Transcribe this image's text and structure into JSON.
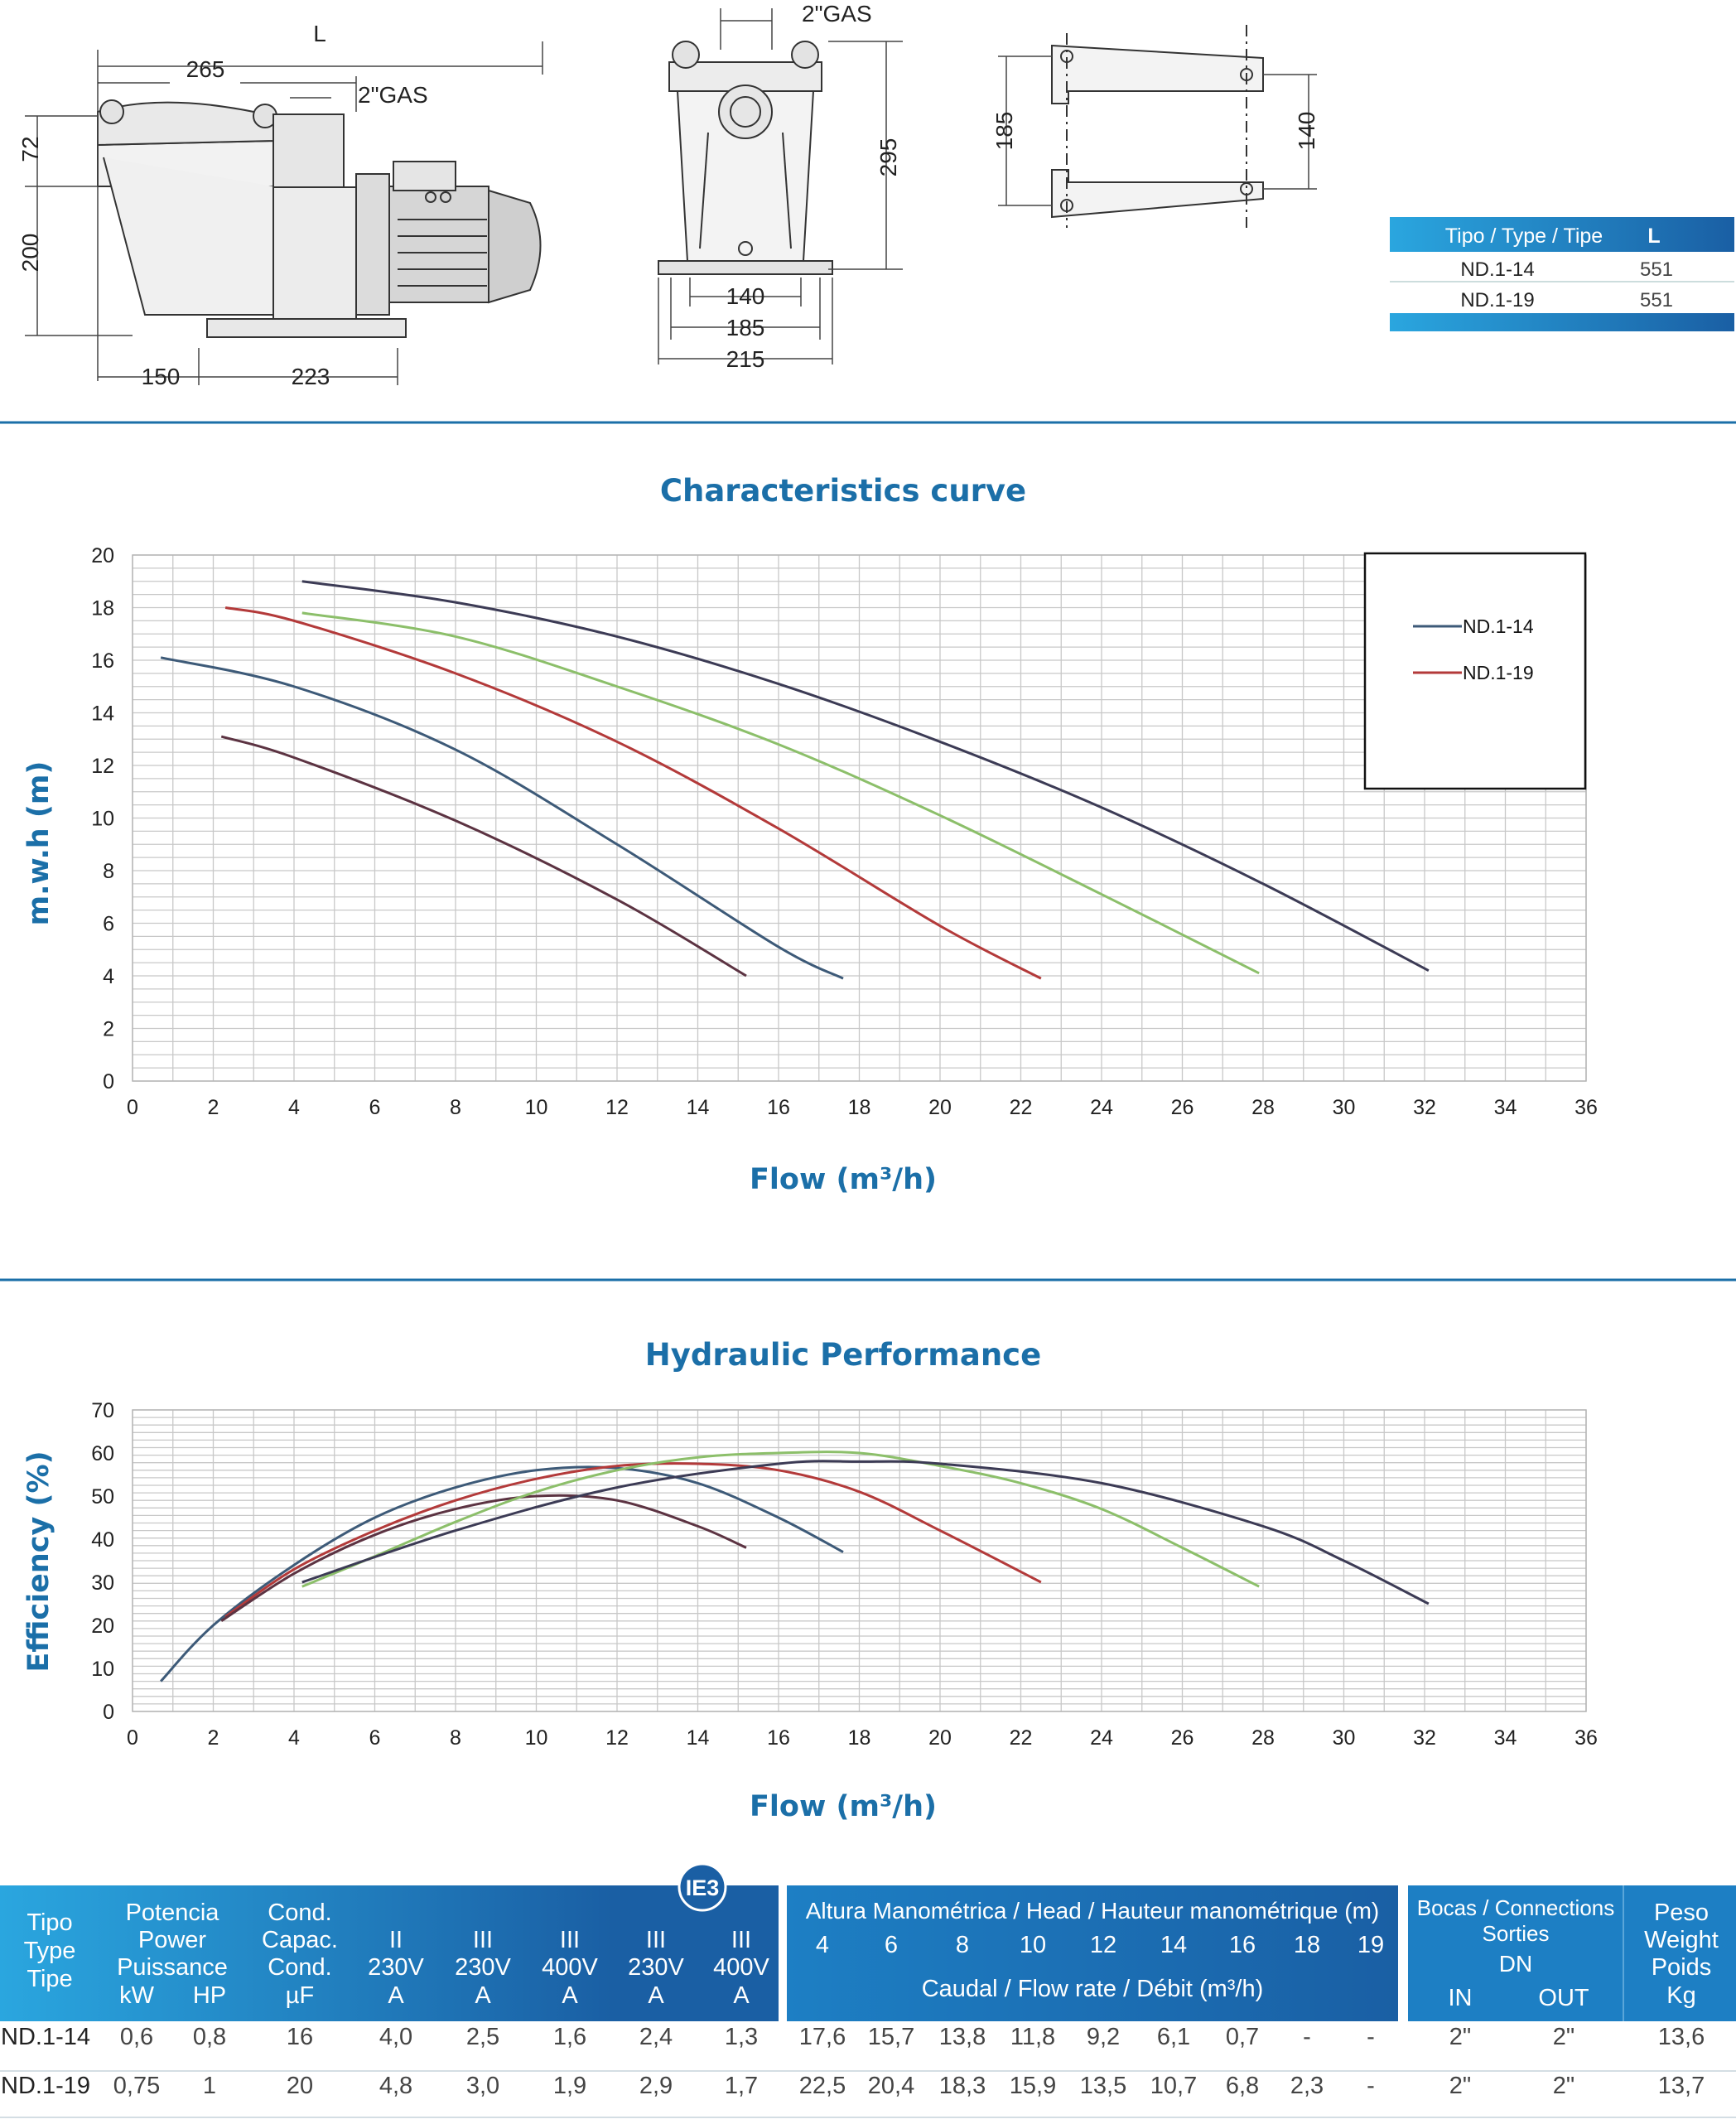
{
  "dimensions": {
    "side_view": {
      "L": "L",
      "w265": "265",
      "gas": "2\"GAS",
      "h72": "72",
      "h200": "200",
      "w150": "150",
      "w223": "223"
    },
    "front_view": {
      "gas": "2\"GAS",
      "h295": "295",
      "w140": "140",
      "w185": "185",
      "w215": "215"
    },
    "base_view": {
      "h185": "185",
      "h140": "140"
    }
  },
  "type_table": {
    "header": [
      "Tipo / Type / Tipe",
      "L"
    ],
    "rows": [
      [
        "ND.1-14",
        "551"
      ],
      [
        "ND.1-19",
        "551"
      ]
    ]
  },
  "chart_data": [
    {
      "type": "line",
      "title": "Characteristics curve",
      "xlabel": "Flow (m³/h)",
      "ylabel": "m.w.h (m)",
      "xlim": [
        0,
        36
      ],
      "ylim": [
        0,
        20
      ],
      "xticks": [
        "0",
        "2",
        "4",
        "6",
        "8",
        "10",
        "12",
        "14",
        "16",
        "18",
        "20",
        "22",
        "24",
        "26",
        "28",
        "30",
        "32",
        "34",
        "36"
      ],
      "yticks": [
        "0",
        "2",
        "4",
        "6",
        "8",
        "10",
        "12",
        "14",
        "16",
        "18",
        "20"
      ],
      "grid": true,
      "legend_position": "top-right",
      "legend": [
        "ND.1-14",
        "ND.1-19"
      ],
      "series": [
        {
          "name": "ND.1-14",
          "color": "#3d5a78",
          "x": [
            0.7,
            4,
            8,
            12,
            16,
            17.6
          ],
          "y": [
            16.1,
            15.0,
            12.6,
            9.0,
            5.1,
            3.9
          ]
        },
        {
          "name": "ND.1-19",
          "color": "#b33a3a",
          "x": [
            2.3,
            4,
            8,
            12,
            16,
            20,
            22.5
          ],
          "y": [
            18.0,
            17.5,
            15.5,
            12.9,
            9.6,
            5.9,
            3.9
          ]
        },
        {
          "color": "#5c3342",
          "x": [
            2.2,
            4,
            8,
            12,
            15.2
          ],
          "y": [
            13.1,
            12.3,
            9.9,
            6.9,
            4.0
          ]
        },
        {
          "color": "#8cbf6a",
          "x": [
            4.2,
            8,
            12,
            16,
            20,
            24,
            27.9
          ],
          "y": [
            17.8,
            16.9,
            15.0,
            12.8,
            10.1,
            7.1,
            4.1
          ]
        },
        {
          "color": "#3c3b55",
          "x": [
            4.2,
            8,
            12,
            16,
            20,
            24,
            28,
            32.1
          ],
          "y": [
            19.0,
            18.2,
            16.9,
            15.1,
            12.9,
            10.4,
            7.5,
            4.2
          ]
        }
      ]
    },
    {
      "type": "line",
      "title": "Hydraulic Performance",
      "xlabel": "Flow (m³/h)",
      "ylabel": "Efficiency (%)",
      "xlim": [
        0,
        36
      ],
      "ylim": [
        0,
        70
      ],
      "xticks": [
        "0",
        "2",
        "4",
        "6",
        "8",
        "10",
        "12",
        "14",
        "16",
        "18",
        "20",
        "22",
        "24",
        "26",
        "28",
        "30",
        "32",
        "34",
        "36"
      ],
      "yticks": [
        "0",
        "10",
        "20",
        "30",
        "40",
        "50",
        "60",
        "70"
      ],
      "grid": true,
      "series": [
        {
          "color": "#3d5a78",
          "x": [
            0.7,
            2,
            4,
            6,
            8,
            10,
            12,
            14,
            16,
            17.6
          ],
          "y": [
            7,
            20,
            34,
            45,
            52,
            56,
            56.5,
            53,
            45,
            37
          ]
        },
        {
          "color": "#b33a3a",
          "x": [
            2.3,
            4,
            6,
            8,
            10,
            12,
            14,
            16,
            18,
            20,
            22.5
          ],
          "y": [
            22,
            33,
            42,
            49,
            54,
            57,
            57.5,
            56,
            51,
            42,
            30
          ]
        },
        {
          "color": "#5c3342",
          "x": [
            2.2,
            4,
            6,
            8,
            10,
            12,
            14,
            15.2
          ],
          "y": [
            21,
            32,
            41,
            47,
            50,
            49,
            43,
            38
          ]
        },
        {
          "color": "#8cbf6a",
          "x": [
            4.2,
            6,
            8,
            10,
            12,
            14,
            16,
            18,
            20,
            22,
            24,
            26,
            27.9
          ],
          "y": [
            29,
            36,
            44,
            51,
            56,
            59,
            60,
            60,
            57,
            53,
            47,
            38,
            29
          ]
        },
        {
          "color": "#3c3b55",
          "x": [
            4.2,
            8,
            12,
            16,
            18,
            20,
            24,
            28,
            30,
            32.1
          ],
          "y": [
            30,
            42,
            52,
            57.5,
            58,
            57.5,
            53,
            43,
            35,
            25
          ]
        }
      ]
    }
  ],
  "spec_table": {
    "tipo": [
      "Tipo",
      "Type",
      "Tipe"
    ],
    "potencia": [
      "Potencia",
      "Power",
      "Puissance"
    ],
    "kw": "kW",
    "hp": "HP",
    "cond": [
      "Cond.",
      "Capac.",
      "Cond."
    ],
    "uf": "µF",
    "amp_cols": [
      {
        "phase": "II",
        "volt": "230V",
        "unit": "A"
      },
      {
        "phase": "III",
        "volt": "230V",
        "unit": "A"
      },
      {
        "phase": "III",
        "volt": "400V",
        "unit": "A"
      }
    ],
    "ie3_badge": "IE3",
    "ie3_cols": [
      {
        "phase": "III",
        "volt": "230V",
        "unit": "A"
      },
      {
        "phase": "III",
        "volt": "400V",
        "unit": "A"
      }
    ],
    "head_title": "Altura Manométrica / Head / Hauteur manométrique (m)",
    "head_values": [
      "4",
      "6",
      "8",
      "10",
      "12",
      "14",
      "16",
      "18",
      "19"
    ],
    "flow_label": "Caudal / Flow rate / Débit (m³/h)",
    "bocas": [
      "Bocas / Connections",
      "Sorties",
      "DN"
    ],
    "in_label": "IN",
    "out_label": "OUT",
    "peso": [
      "Peso",
      "Weight",
      "Poids",
      "Kg"
    ],
    "rows": [
      [
        "ND.1-14",
        "0,6",
        "0,8",
        "16",
        "4,0",
        "2,5",
        "1,6",
        "2,4",
        "1,3",
        "17,6",
        "15,7",
        "13,8",
        "11,8",
        "9,2",
        "6,1",
        "0,7",
        "-",
        "-",
        "2\"",
        "2\"",
        "13,6"
      ],
      [
        "ND.1-19",
        "0,75",
        "1",
        "20",
        "4,8",
        "3,0",
        "1,9",
        "2,9",
        "1,7",
        "22,5",
        "20,4",
        "18,3",
        "15,9",
        "13,5",
        "10,7",
        "6,8",
        "2,3",
        "-",
        "2\"",
        "2\"",
        "13,7"
      ]
    ]
  }
}
